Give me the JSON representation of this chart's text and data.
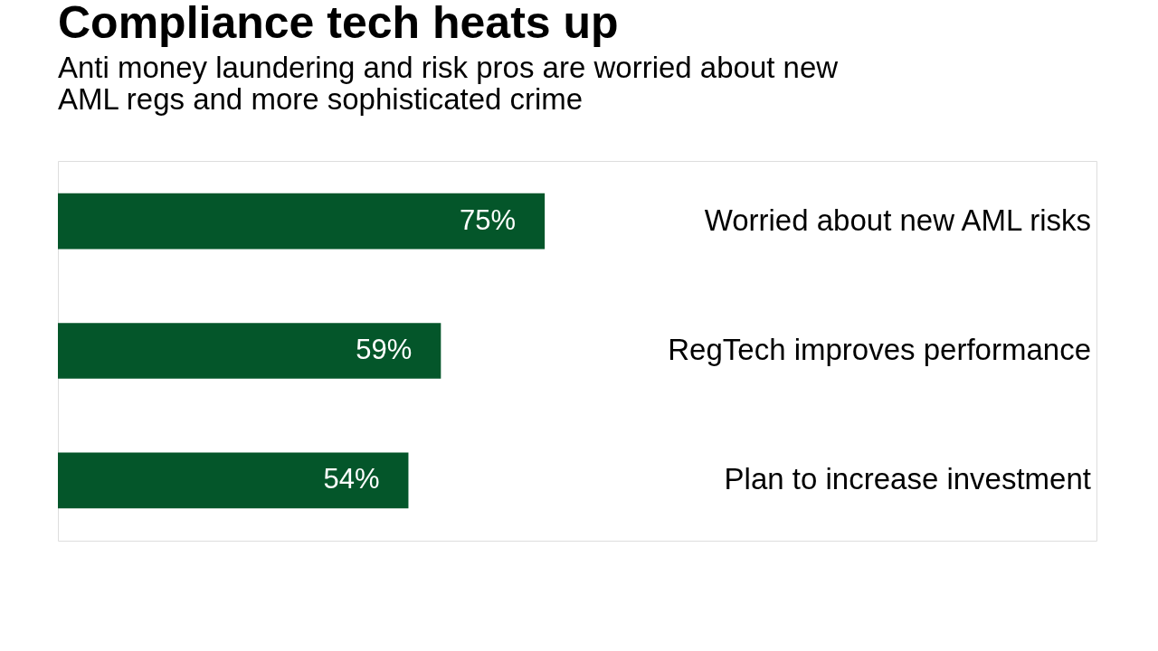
{
  "chart_data": {
    "type": "bar",
    "orientation": "horizontal",
    "title": "Compliance tech heats up",
    "subtitle": [
      "Anti money laundering and risk pros are worried about new",
      "AML regs and more sophisticated crime"
    ],
    "categories": [
      "Worried about new AML risks",
      "RegTech improves performance",
      "Plan to increase investment"
    ],
    "values": [
      75,
      59,
      54
    ],
    "color": "#04562a",
    "xlim": [
      0,
      160
    ],
    "value_labels": [
      "75%",
      "59%",
      "54%"
    ]
  }
}
